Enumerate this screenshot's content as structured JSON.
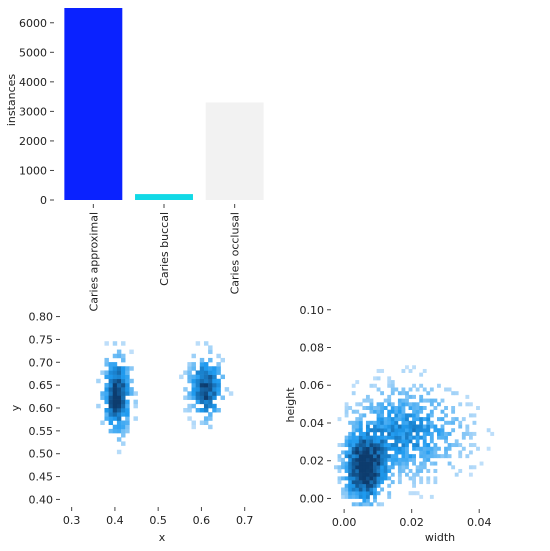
{
  "chart_data": [
    {
      "type": "bar",
      "categories": [
        "Caries approximal",
        "Caries buccal",
        "Caries occlusal"
      ],
      "values": [
        6500,
        200,
        3300
      ],
      "colors": [
        "#0a22ff",
        "#11d9e6",
        "#f2f2f2"
      ],
      "ylabel": "instances",
      "xlabel": "",
      "ylim": [
        0,
        6500
      ],
      "yticks": [
        0,
        1000,
        2000,
        3000,
        4000,
        5000,
        6000
      ],
      "ytick_labels": [
        "0",
        "1000",
        "2000",
        "3000",
        "4000",
        "5000",
        "6000"
      ],
      "grid": false
    },
    {
      "type": "heatmap",
      "xlabel": "x",
      "ylabel": "y",
      "xlim": [
        0.28,
        0.74
      ],
      "ylim": [
        0.39,
        0.81
      ],
      "xticks": [
        0.3,
        0.4,
        0.5,
        0.6,
        0.7
      ],
      "xtick_labels": [
        "0.3",
        "0.4",
        "0.5",
        "0.6",
        "0.7"
      ],
      "yticks": [
        0.4,
        0.45,
        0.5,
        0.55,
        0.6,
        0.65,
        0.7,
        0.75,
        0.8
      ],
      "ytick_labels": [
        "0.40",
        "0.45",
        "0.50",
        "0.55",
        "0.60",
        "0.65",
        "0.70",
        "0.75",
        "0.80"
      ],
      "clusters": [
        {
          "cx": 0.405,
          "cy": 0.63,
          "sx": 0.022,
          "sy": 0.055,
          "weight": 1.0
        },
        {
          "cx": 0.61,
          "cy": 0.645,
          "sx": 0.026,
          "sy": 0.045,
          "weight": 0.9
        }
      ],
      "colormap": [
        "#d4e8fb",
        "#1f9bf0",
        "#0d3c6e"
      ],
      "grid": false
    },
    {
      "type": "heatmap",
      "xlabel": "width",
      "ylabel": "height",
      "xlim": [
        -0.003,
        0.058
      ],
      "ylim": [
        -0.004,
        0.102
      ],
      "xticks": [
        0.0,
        0.02,
        0.04
      ],
      "xtick_labels": [
        "0.00",
        "0.02",
        "0.04"
      ],
      "yticks": [
        0.0,
        0.02,
        0.04,
        0.06,
        0.08,
        0.1
      ],
      "ytick_labels": [
        "0.00",
        "0.02",
        "0.04",
        "0.06",
        "0.08",
        "0.10"
      ],
      "clusters": [
        {
          "cx": 0.006,
          "cy": 0.015,
          "sx": 0.004,
          "sy": 0.012,
          "weight": 1.0
        },
        {
          "cx": 0.018,
          "cy": 0.035,
          "sx": 0.01,
          "sy": 0.014,
          "weight": 0.35
        }
      ],
      "colormap": [
        "#d4e8fb",
        "#1f9bf0",
        "#0d3c6e"
      ],
      "grid": false
    }
  ]
}
